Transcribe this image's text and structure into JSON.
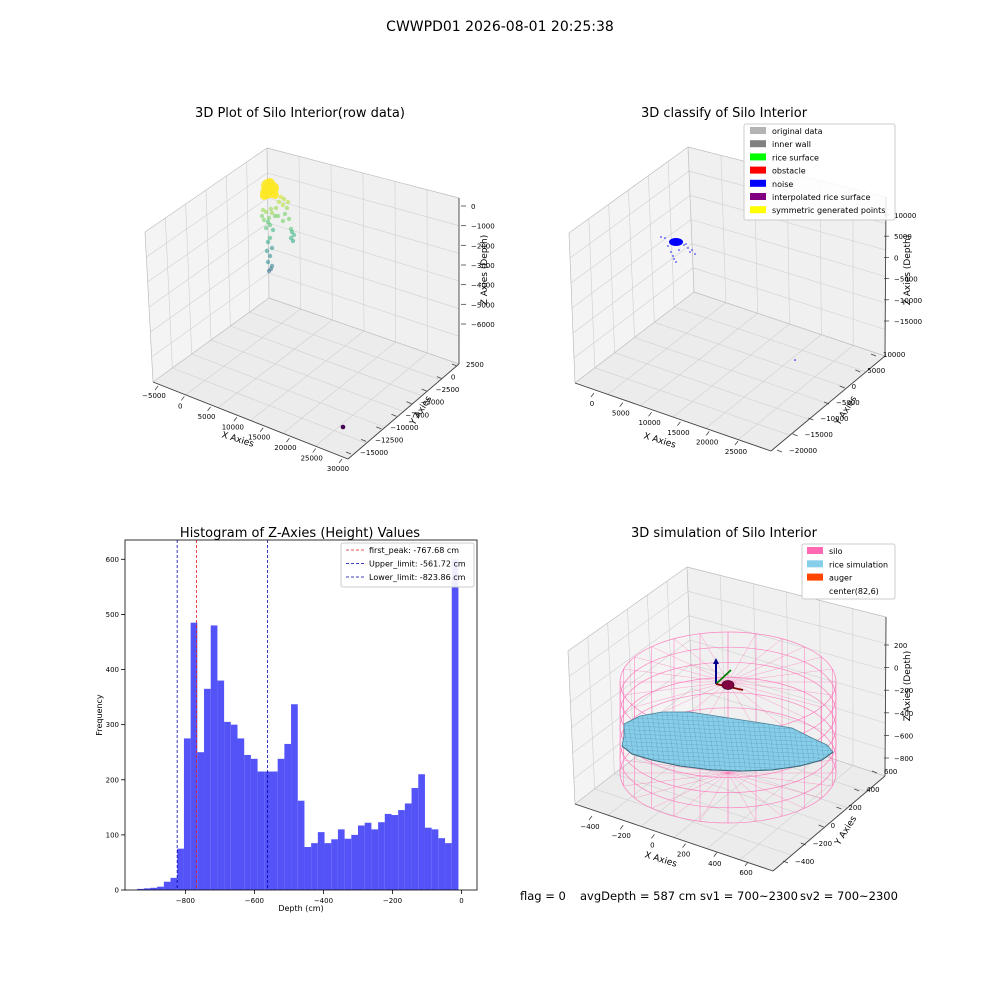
{
  "figure_title": "CWWPD01 2026-08-01 20:25:38",
  "colors": {
    "bar": "#4a4af8",
    "first_peak": "#e31a1c",
    "limits": "#0000aa",
    "pane": "#f2f2f2",
    "grid": "#d0d0d0"
  },
  "chart_data": [
    {
      "type": "scatter3d",
      "title": "3D Plot of Silo Interior(row data)",
      "xlabel": "X Axies",
      "ylabel": "Y Axies",
      "zlabel": "Z Axies (Depth)",
      "x_ticks": [
        "−5000",
        "0",
        "5000",
        "10000",
        "15000",
        "20000",
        "25000",
        "30000"
      ],
      "y_ticks": [
        "2500",
        "0",
        "−2500",
        "−5000",
        "−7500",
        "−10000",
        "−12500",
        "−15000"
      ],
      "z_ticks": [
        "0",
        "−1000",
        "−2000",
        "−3000",
        "−4000",
        "−5000",
        "−6000"
      ],
      "colormap": "viridis"
    },
    {
      "type": "scatter3d",
      "title": "3D classify of Silo Interior",
      "xlabel": "X Axies",
      "ylabel": "Y Axies",
      "zlabel": "Z Axies (Depth)",
      "x_ticks": [
        "0",
        "5000",
        "10000",
        "15000",
        "20000",
        "25000"
      ],
      "y_ticks": [
        "10000",
        "5000",
        "0",
        "−5000",
        "−10000",
        "−15000",
        "−20000"
      ],
      "z_ticks": [
        "10000",
        "5000",
        "0",
        "−5000",
        "−10000",
        "−15000"
      ],
      "legend": [
        {
          "label": "original data",
          "color": "#b3b3b3"
        },
        {
          "label": "inner wall",
          "color": "#808080"
        },
        {
          "label": "rice surface",
          "color": "#00ff00"
        },
        {
          "label": "obstacle",
          "color": "#ff0000"
        },
        {
          "label": "noise",
          "color": "#0000ff"
        },
        {
          "label": "interpolated rice surface",
          "color": "#800080"
        },
        {
          "label": "symmetric generated points",
          "color": "#ffff00"
        }
      ]
    },
    {
      "type": "bar",
      "title": "Histogram of Z-Axies (Height) Values",
      "xlabel": "Depth (cm)",
      "ylabel": "Frequency",
      "xlim": [
        -975,
        45
      ],
      "ylim": [
        0,
        635
      ],
      "x_ticks": [
        -800,
        -600,
        -400,
        -200,
        0
      ],
      "y_ticks": [
        0,
        100,
        200,
        300,
        400,
        500,
        600
      ],
      "bin_start": -940,
      "bin_width": 19.4,
      "values": [
        2,
        3,
        4,
        6,
        15,
        22,
        75,
        275,
        485,
        250,
        365,
        480,
        380,
        305,
        300,
        275,
        245,
        238,
        215,
        215,
        215,
        238,
        265,
        337,
        162,
        78,
        85,
        105,
        85,
        92,
        110,
        93,
        100,
        117,
        122,
        110,
        123,
        138,
        136,
        145,
        157,
        185,
        210,
        113,
        110,
        94,
        85,
        600
      ],
      "lines": [
        {
          "label": "first_peak: -767.68 cm",
          "x": -767.68,
          "color": "#e31a1c"
        },
        {
          "label": "Upper_limit: -561.72 cm",
          "x": -561.72,
          "color": "#0000aa"
        },
        {
          "label": "Lower_limit: -823.86 cm",
          "x": -823.86,
          "color": "#0000aa"
        }
      ],
      "legend_position": "top-right"
    },
    {
      "type": "surface3d",
      "title": "3D simulation of Silo Interior",
      "xlabel": "X Axies",
      "ylabel": "Y Axies",
      "zlabel": "Z Axies (Depth)",
      "x_ticks": [
        "−400",
        "−200",
        "0",
        "200",
        "400",
        "600"
      ],
      "y_ticks": [
        "600",
        "400",
        "200",
        "0",
        "−200",
        "−400"
      ],
      "z_ticks": [
        "200",
        "0",
        "−200",
        "−400",
        "−600",
        "−800"
      ],
      "legend": [
        {
          "label": "silo",
          "color": "#ff69b4"
        },
        {
          "label": "rice simulation",
          "color": "#87ceeb"
        },
        {
          "label": "auger",
          "color": "#ff4500"
        },
        {
          "label": "center(82,6)",
          "color": ""
        }
      ]
    }
  ],
  "status": {
    "flag": "flag = 0",
    "avg_depth": "avgDepth = 587 cm",
    "sv1": "sv1 = 700~2300",
    "sv2": "sv2 = 700~2300"
  }
}
